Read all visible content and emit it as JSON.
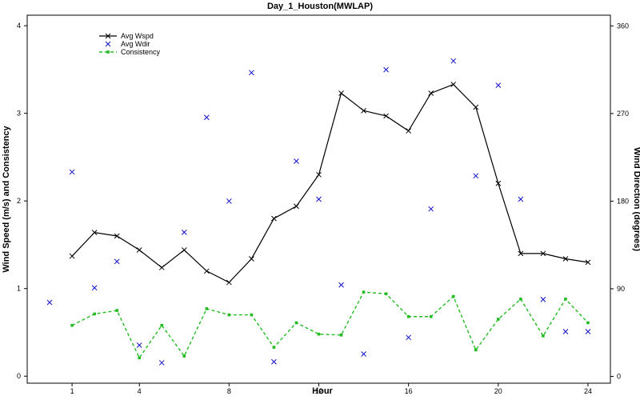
{
  "chart_data": {
    "type": "line",
    "title": "Day_1_Houston(MWLAP)",
    "xlabel": "Hour",
    "ylabel_left": "Wind Speed (m/s) and Consistency",
    "ylabel_right": "Wind Direction (degrees)",
    "xlim": [
      -1,
      25
    ],
    "ylim_left": [
      -0.08,
      4.12
    ],
    "ylim_right": [
      -7,
      371
    ],
    "x_ticks": [
      1,
      4,
      8,
      12,
      16,
      20,
      24
    ],
    "y_ticks_left": [
      0,
      1,
      2,
      3,
      4
    ],
    "y_ticks_right": [
      0,
      90,
      180,
      270,
      360
    ],
    "grid": false,
    "legend_position": "top-left",
    "colors": {
      "wspd": "#000000",
      "wdir": "#1010c8",
      "consistency": "#22bb22"
    },
    "series": [
      {
        "name": "Avg Wspd",
        "style": "line-x",
        "axis": "left",
        "x": [
          1,
          2,
          3,
          4,
          5,
          6,
          7,
          8,
          9,
          10,
          11,
          12,
          13,
          14,
          15,
          16,
          17,
          18,
          19,
          20,
          21,
          22,
          23,
          24
        ],
        "y": [
          1.37,
          1.64,
          1.6,
          1.44,
          1.24,
          1.44,
          1.2,
          1.07,
          1.34,
          1.8,
          1.94,
          2.3,
          3.23,
          3.03,
          2.97,
          2.8,
          3.23,
          3.33,
          3.07,
          2.2,
          1.4,
          1.4,
          1.34,
          1.3
        ]
      },
      {
        "name": "Avg Wdir",
        "style": "x-markers",
        "axis": "right",
        "x": [
          0,
          1,
          2,
          3,
          4,
          5,
          6,
          7,
          8,
          9,
          10,
          11,
          12,
          13,
          14,
          15,
          16,
          17,
          18,
          19,
          20,
          21,
          22,
          23,
          24
        ],
        "y": [
          76,
          210,
          91,
          118,
          32,
          14,
          148,
          266,
          180,
          312,
          15,
          221,
          182,
          94,
          23,
          315,
          40,
          172,
          324,
          206,
          299,
          182,
          79,
          46,
          46
        ]
      },
      {
        "name": "Consistency",
        "style": "dashed-square",
        "axis": "left",
        "x": [
          1,
          2,
          3,
          4,
          5,
          6,
          7,
          8,
          9,
          10,
          11,
          12,
          13,
          14,
          15,
          16,
          17,
          18,
          19,
          20,
          21,
          22,
          23,
          24
        ],
        "y": [
          0.58,
          0.71,
          0.75,
          0.21,
          0.58,
          0.23,
          0.77,
          0.7,
          0.7,
          0.33,
          0.61,
          0.48,
          0.47,
          0.96,
          0.94,
          0.68,
          0.68,
          0.91,
          0.3,
          0.65,
          0.88,
          0.46,
          0.88,
          0.61
        ]
      }
    ]
  }
}
